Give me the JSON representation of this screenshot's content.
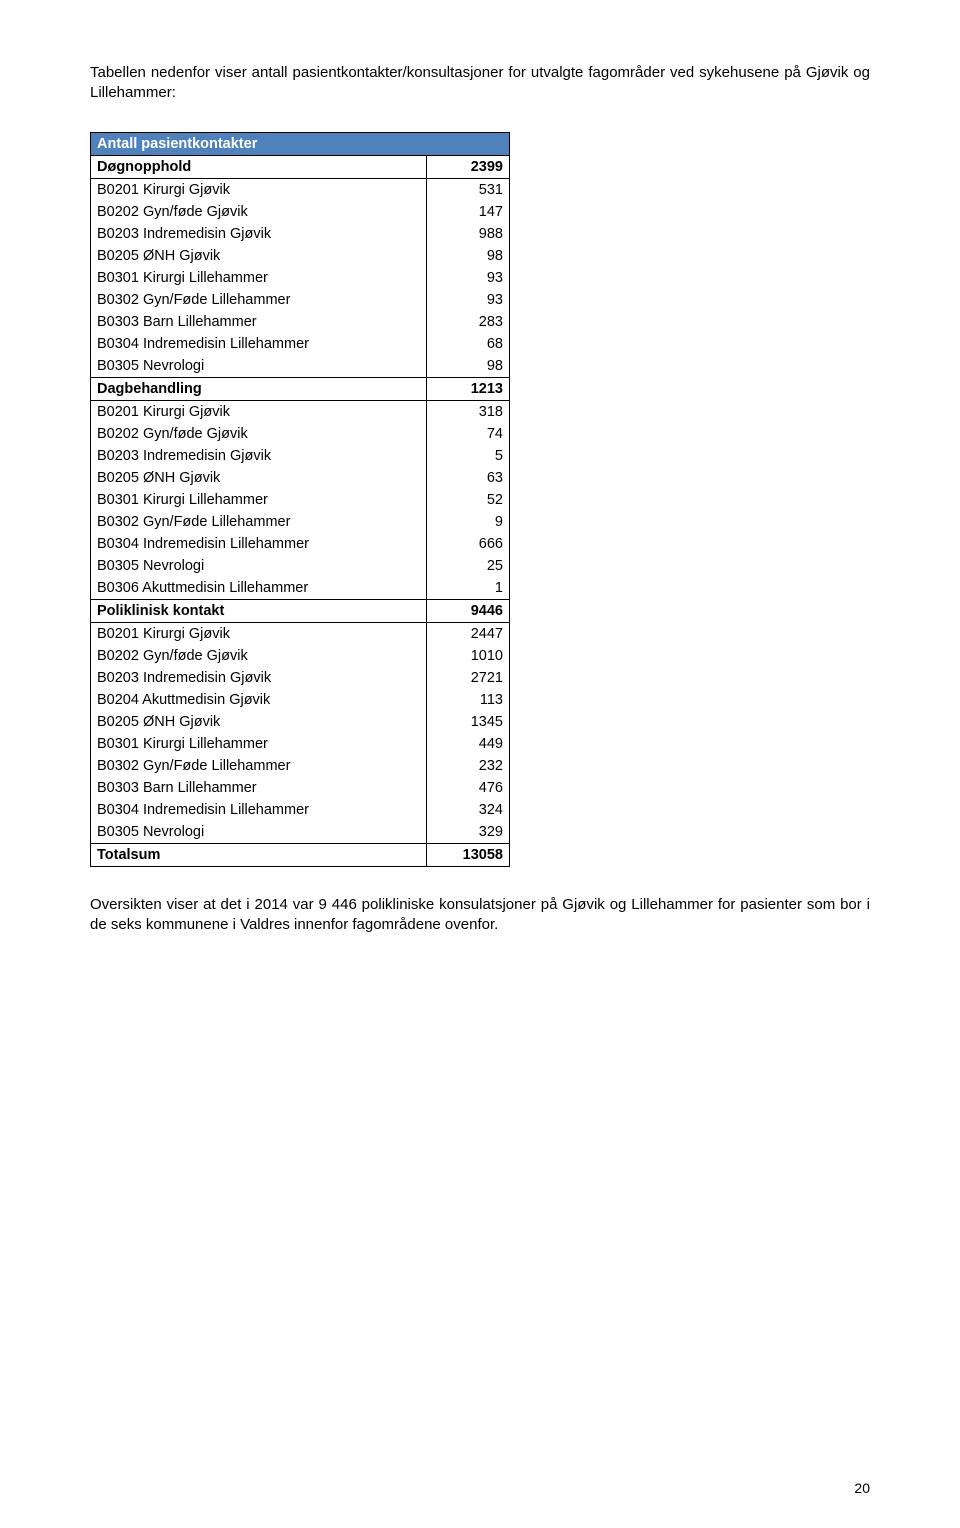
{
  "intro": "Tabellen nedenfor viser antall pasientkontakter/konsultasjoner for utvalgte fagområder ved sykehusene på Gjøvik og Lillehammer:",
  "table": {
    "header": "Antall pasientkontakter",
    "colors": {
      "header_bg": "#4f81bd",
      "header_fg": "#ffffff",
      "border": "#000000"
    },
    "rows": [
      {
        "type": "section",
        "label": "Døgnopphold",
        "value": "2399"
      },
      {
        "type": "data",
        "label": "B0201 Kirurgi Gjøvik",
        "value": "531"
      },
      {
        "type": "data",
        "label": "B0202 Gyn/føde Gjøvik",
        "value": "147"
      },
      {
        "type": "data",
        "label": "B0203 Indremedisin Gjøvik",
        "value": "988"
      },
      {
        "type": "data",
        "label": "B0205 ØNH Gjøvik",
        "value": "98"
      },
      {
        "type": "data",
        "label": "B0301 Kirurgi Lillehammer",
        "value": "93"
      },
      {
        "type": "data",
        "label": "B0302 Gyn/Føde Lillehammer",
        "value": "93"
      },
      {
        "type": "data",
        "label": "B0303 Barn Lillehammer",
        "value": "283"
      },
      {
        "type": "data",
        "label": "B0304 Indremedisin Lillehammer",
        "value": "68"
      },
      {
        "type": "data",
        "label": "B0305 Nevrologi",
        "value": "98"
      },
      {
        "type": "section",
        "label": "Dagbehandling",
        "value": "1213"
      },
      {
        "type": "data",
        "label": "B0201 Kirurgi Gjøvik",
        "value": "318"
      },
      {
        "type": "data",
        "label": "B0202 Gyn/føde Gjøvik",
        "value": "74"
      },
      {
        "type": "data",
        "label": "B0203 Indremedisin Gjøvik",
        "value": "5"
      },
      {
        "type": "data",
        "label": "B0205 ØNH Gjøvik",
        "value": "63"
      },
      {
        "type": "data",
        "label": "B0301 Kirurgi Lillehammer",
        "value": "52"
      },
      {
        "type": "data",
        "label": "B0302 Gyn/Føde Lillehammer",
        "value": "9"
      },
      {
        "type": "data",
        "label": "B0304 Indremedisin Lillehammer",
        "value": "666"
      },
      {
        "type": "data",
        "label": "B0305 Nevrologi",
        "value": "25"
      },
      {
        "type": "data",
        "label": "B0306 Akuttmedisin Lillehammer",
        "value": "1"
      },
      {
        "type": "section",
        "label": "Poliklinisk kontakt",
        "value": "9446"
      },
      {
        "type": "data",
        "label": "B0201 Kirurgi Gjøvik",
        "value": "2447"
      },
      {
        "type": "data",
        "label": "B0202 Gyn/føde Gjøvik",
        "value": "1010"
      },
      {
        "type": "data",
        "label": "B0203 Indremedisin Gjøvik",
        "value": "2721"
      },
      {
        "type": "data",
        "label": "B0204 Akuttmedisin Gjøvik",
        "value": "113"
      },
      {
        "type": "data",
        "label": "B0205 ØNH Gjøvik",
        "value": "1345"
      },
      {
        "type": "data",
        "label": "B0301 Kirurgi Lillehammer",
        "value": "449"
      },
      {
        "type": "data",
        "label": "B0302 Gyn/Føde Lillehammer",
        "value": "232"
      },
      {
        "type": "data",
        "label": "B0303 Barn Lillehammer",
        "value": "476"
      },
      {
        "type": "data",
        "label": "B0304 Indremedisin Lillehammer",
        "value": "324"
      },
      {
        "type": "data",
        "label": "B0305 Nevrologi",
        "value": "329"
      },
      {
        "type": "total",
        "label": "Totalsum",
        "value": "13058"
      }
    ]
  },
  "outro": "Oversikten viser at det i 2014 var 9 446 polikliniske konsulatsjoner på Gjøvik og Lillehammer for pasienter som bor i de seks kommunene i Valdres innenfor fagområdene ovenfor.",
  "page_number": "20"
}
